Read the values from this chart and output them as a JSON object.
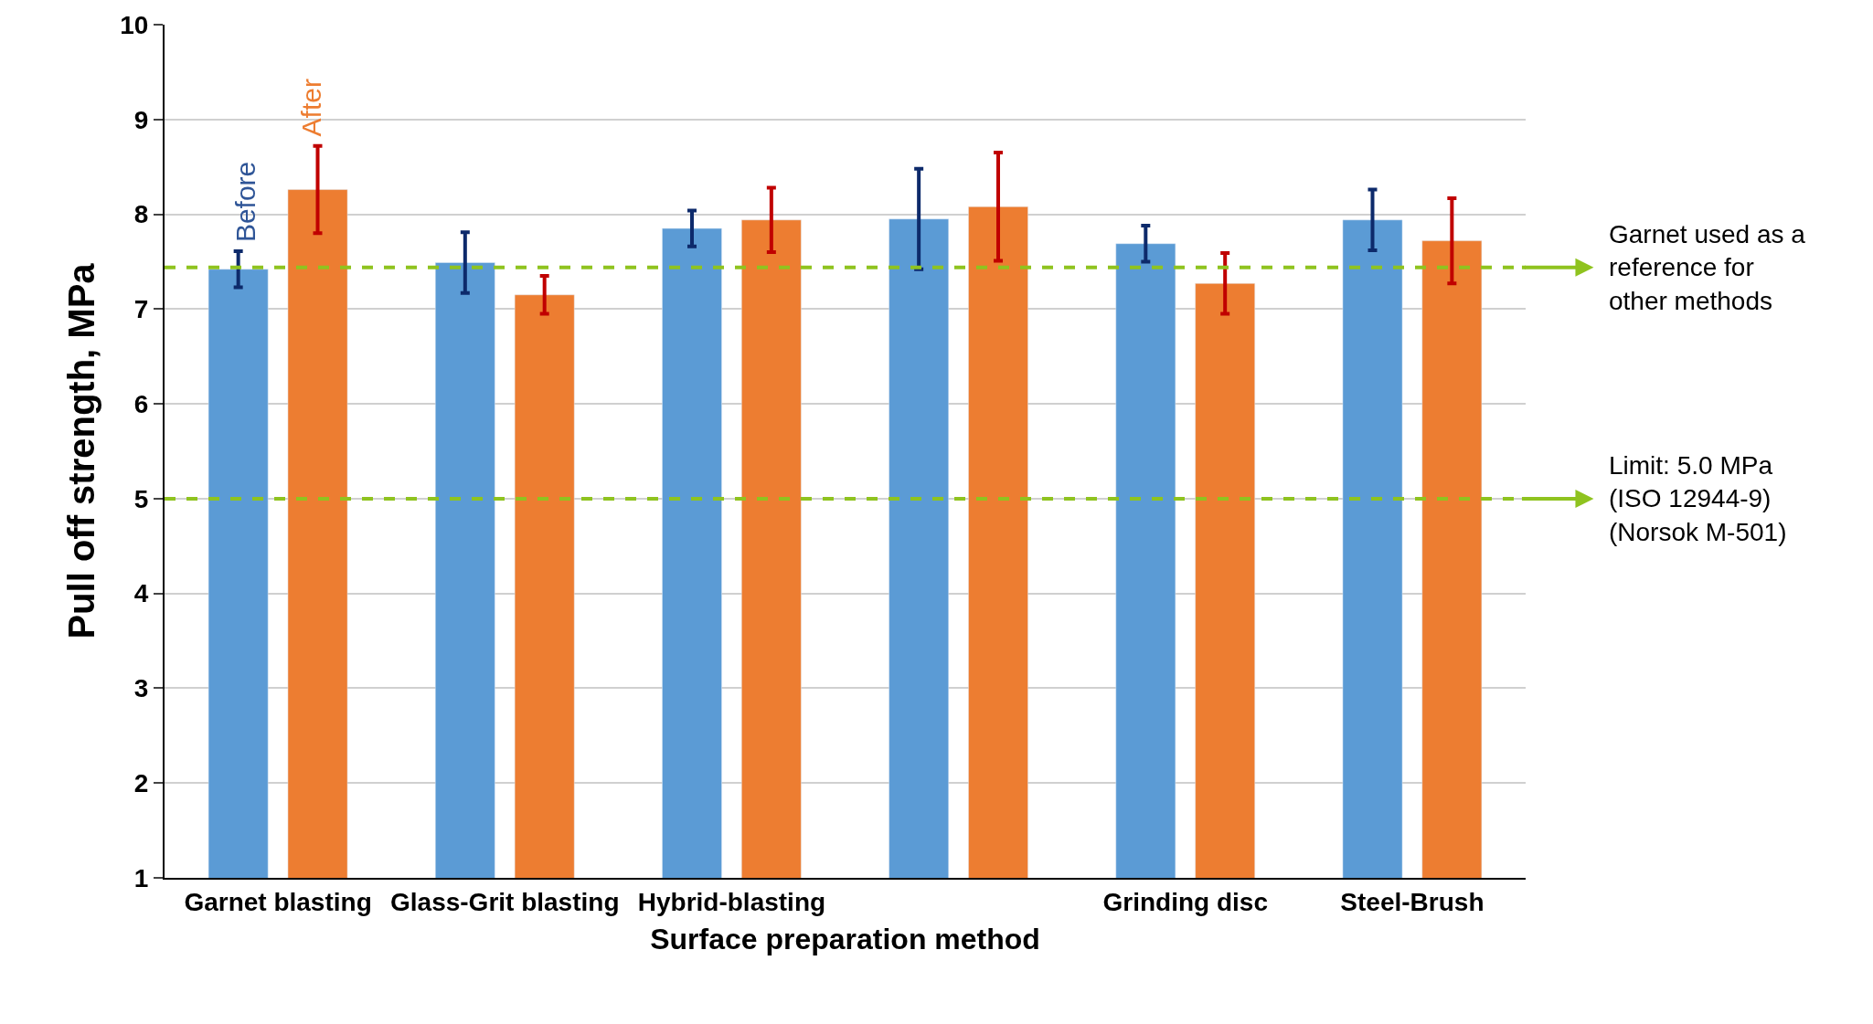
{
  "chart_data": {
    "type": "bar",
    "xlabel": "Surface preparation method",
    "ylabel": "Pull off strength, MPa",
    "categories": [
      "Garnet blasting",
      "Glass-Grit blasting",
      "Hybrid-blasting",
      null,
      "Grinding disc",
      "Steel-Brush"
    ],
    "series": [
      {
        "name": "Before",
        "color": "#5b9bd5",
        "values": [
          7.42,
          7.49,
          7.85,
          7.95,
          7.69,
          7.94
        ],
        "errors": [
          0.19,
          0.32,
          0.19,
          0.53,
          0.19,
          0.32
        ]
      },
      {
        "name": "After",
        "color": "#ed7d31",
        "values": [
          8.26,
          7.15,
          7.94,
          8.08,
          7.27,
          7.72
        ],
        "errors": [
          0.46,
          0.2,
          0.34,
          0.57,
          0.32,
          0.45
        ]
      }
    ],
    "ylim": [
      1,
      10
    ],
    "yticks": [
      1,
      2,
      3,
      4,
      5,
      6,
      7,
      8,
      9,
      10
    ],
    "grid": "y",
    "legend": false,
    "ref_lines": [
      {
        "axis": "y",
        "value": 7.44,
        "label": "Garnet used as a reference for other methods",
        "color": "#8fc31f",
        "line_style": "dashed"
      },
      {
        "axis": "y",
        "value": 5.0,
        "label": "Limit: 5.0 MPa\n(ISO 12944-9)\n(Norsok M-501)",
        "color": "#8fc31f",
        "line_style": "dashed"
      }
    ]
  }
}
